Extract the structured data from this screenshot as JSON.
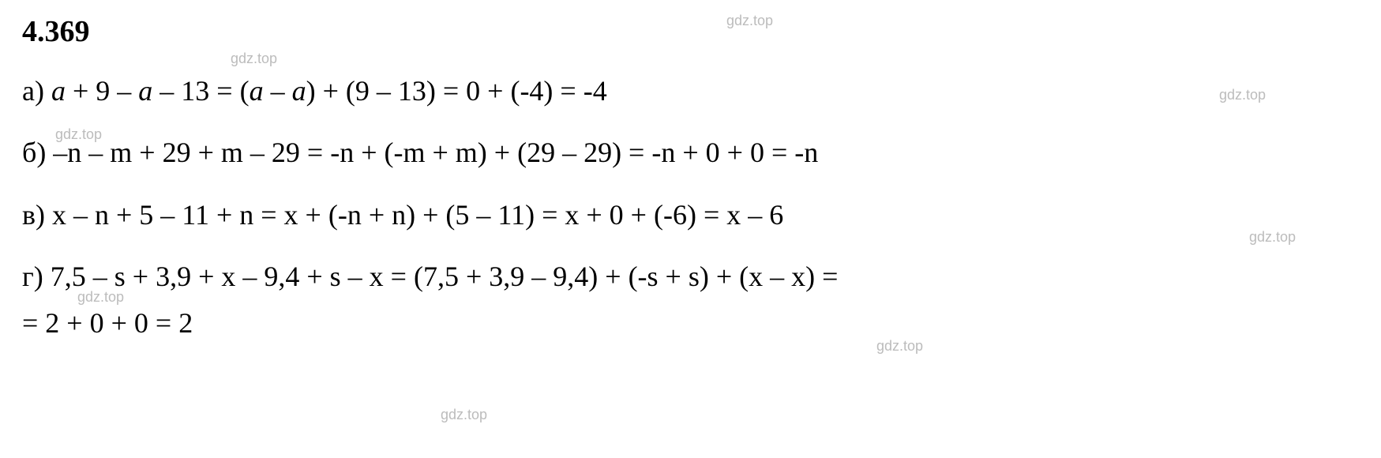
{
  "heading": "4.369",
  "lines": {
    "a": "а) a + 9 – a – 13 = (a – a) + (9 – 13) = 0 + (-4) = -4",
    "b": "б) –n – m + 29 + m – 29 = -n + (-m + m) + (29 – 29) = -n + 0 + 0 = -n",
    "v": "в) x – n + 5 – 11 + n = x + (-n + n) + (5 – 11) = x + 0 + (-6) = x – 6",
    "g": "г) 7,5 – s + 3,9 + x – 9,4 + s – x = (7,5 + 3,9 – 9,4) + (-s + s) + (x – x) =",
    "g_cont": "= 2 + 0 + 0 = 2"
  },
  "watermark_text": "gdz.top",
  "colors": {
    "text": "#000000",
    "background": "#ffffff",
    "watermark": "#bcbcbc"
  },
  "typography": {
    "heading_fontsize": 38,
    "body_fontsize": 36,
    "watermark_fontsize": 18,
    "font_family": "Times New Roman"
  }
}
